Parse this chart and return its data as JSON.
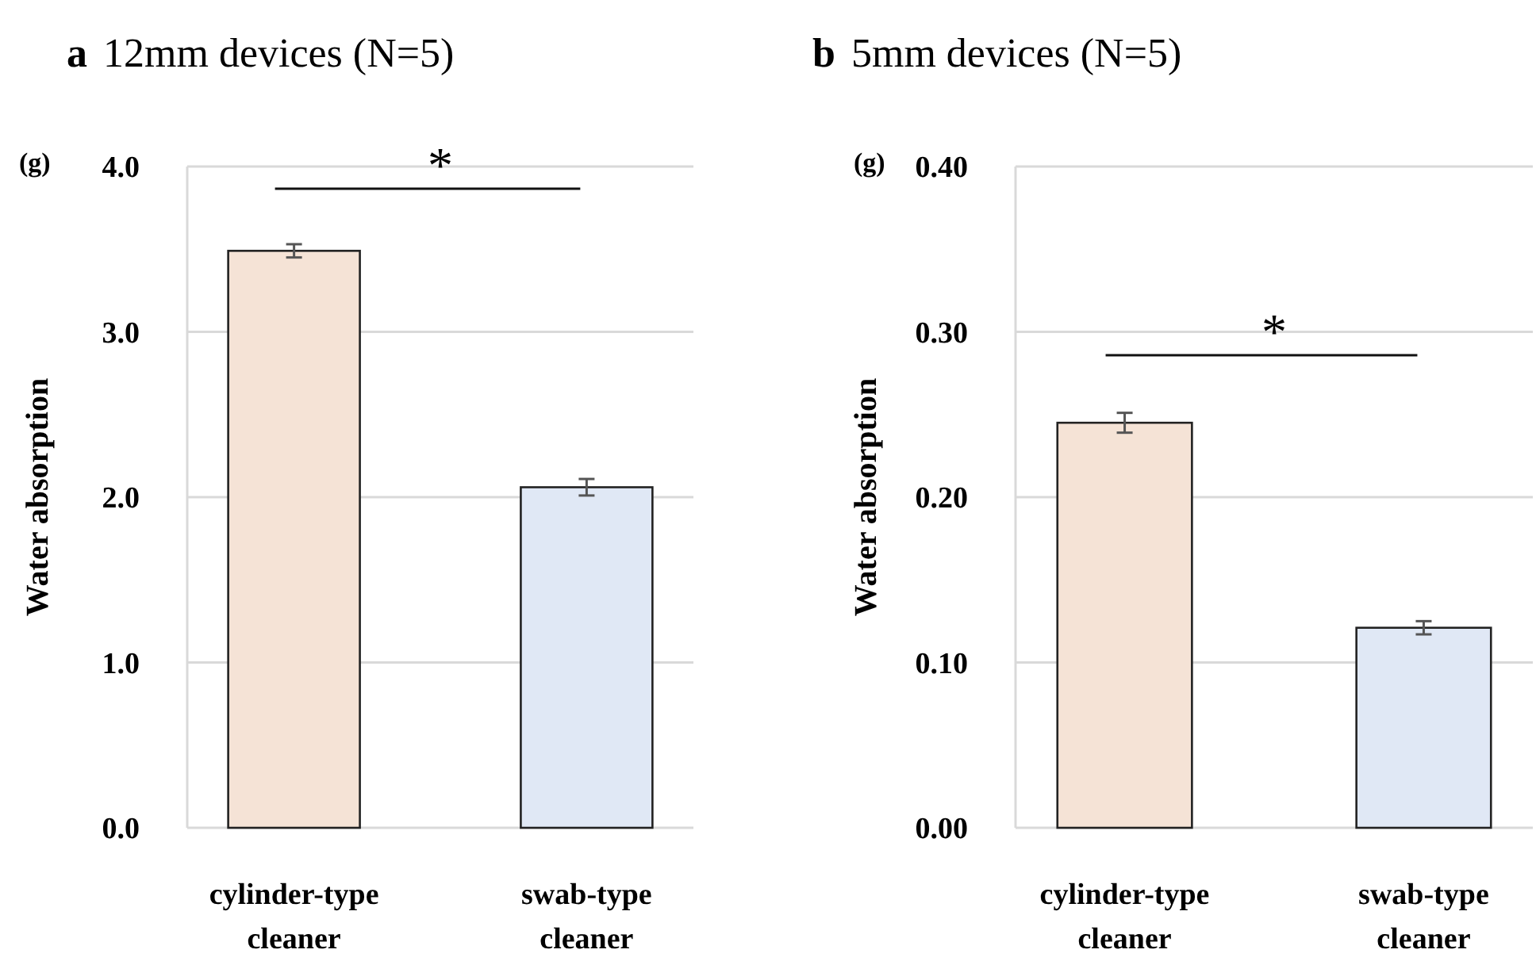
{
  "chart_data": [
    {
      "type": "bar",
      "title": "12mm devices (N=5)",
      "ylabel": "Water absorption",
      "categories": [
        "cylinder-type cleaner",
        "swab-type cleaner"
      ],
      "values": [
        3.49,
        2.06
      ],
      "errors": [
        0.04,
        0.05
      ],
      "colors": [
        "#f5e3d6",
        "#e0e8f5"
      ],
      "ylim": [
        0,
        4.0
      ],
      "yticks": [
        {
          "value": 0,
          "label": "0.0"
        },
        {
          "value": 1,
          "label": "1.0"
        },
        {
          "value": 2,
          "label": "2.0"
        },
        {
          "value": 3,
          "label": "3.0"
        },
        {
          "value": 4,
          "label": "4.0"
        }
      ],
      "grid": "y",
      "annotations": [
        "a",
        "(g)",
        "*"
      ]
    },
    {
      "type": "bar",
      "title": "5mm devices (N=5)",
      "ylabel": "Water absorption",
      "categories": [
        "cylinder-type cleaner",
        "swab-type cleaner"
      ],
      "values": [
        0.245,
        0.121
      ],
      "errors": [
        0.006,
        0.004
      ],
      "colors": [
        "#f5e3d6",
        "#e0e8f5"
      ],
      "ylim": [
        0,
        0.4
      ],
      "yticks": [
        {
          "value": 0,
          "label": "0.00"
        },
        {
          "value": 0.1,
          "label": "0.10"
        },
        {
          "value": 0.2,
          "label": "0.20"
        },
        {
          "value": 0.3,
          "label": "0.30"
        },
        {
          "value": 0.4,
          "label": "0.40"
        }
      ],
      "grid": "y",
      "annotations": [
        "b",
        "(g)",
        "*"
      ]
    }
  ]
}
